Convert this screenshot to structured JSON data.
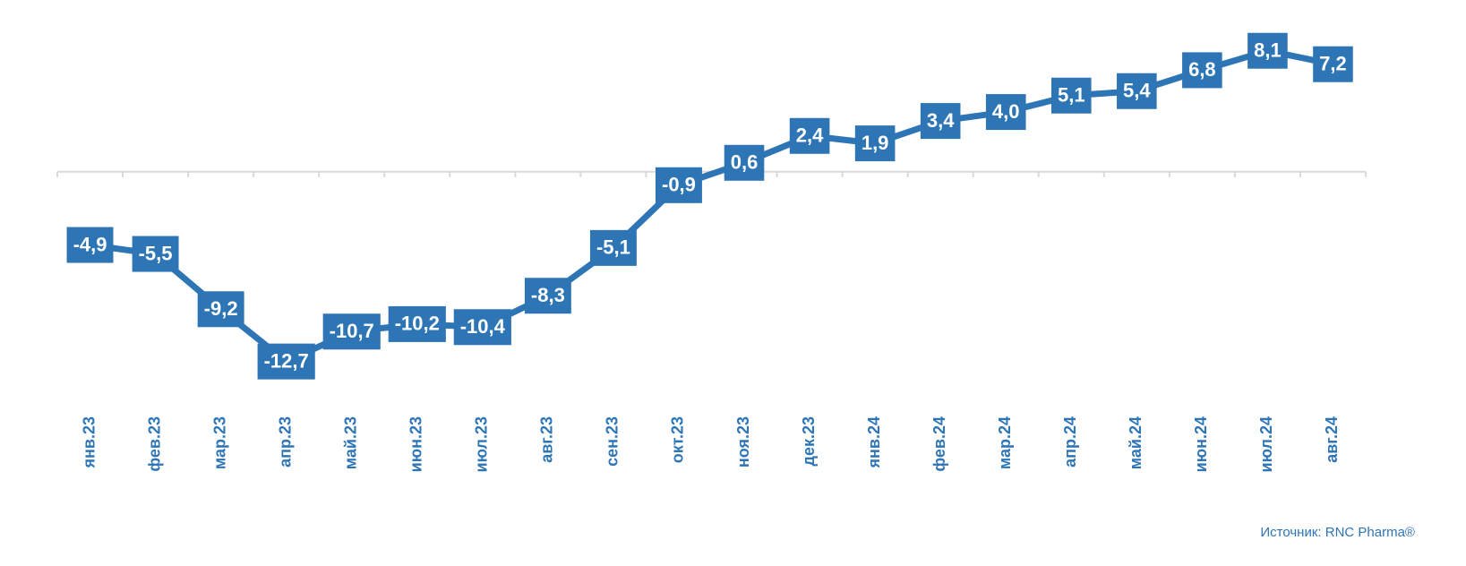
{
  "chart_data": {
    "type": "line",
    "categories": [
      "янв.23",
      "фев.23",
      "мар.23",
      "апр.23",
      "май.23",
      "июн.23",
      "июл.23",
      "авг.23",
      "сен.23",
      "окт.23",
      "ноя.23",
      "дек.23",
      "янв.24",
      "фев.24",
      "мар.24",
      "апр.24",
      "май.24",
      "июн.24",
      "июл.24",
      "авг.24"
    ],
    "series": [
      {
        "color": "#2e75b6",
        "values": [
          -4.9,
          -5.5,
          -9.2,
          -12.7,
          -10.7,
          -10.2,
          -10.4,
          -8.3,
          -5.1,
          -0.9,
          0.6,
          2.4,
          1.9,
          3.4,
          4.0,
          5.1,
          5.4,
          6.8,
          8.1,
          7.2
        ],
        "value_labels": [
          "-4,9",
          "-5,5",
          "-9,2",
          "-12,7",
          "-10,7",
          "-10,2",
          "-10,4",
          "-8,3",
          "-5,1",
          "-0,9",
          "0,6",
          "2,4",
          "1,9",
          "3,4",
          "4,0",
          "5,1",
          "5,4",
          "6,8",
          "8,1",
          "7,2"
        ]
      }
    ],
    "ylim": [
      -15,
      10
    ],
    "source": "Источник: RNC Pharma®"
  }
}
